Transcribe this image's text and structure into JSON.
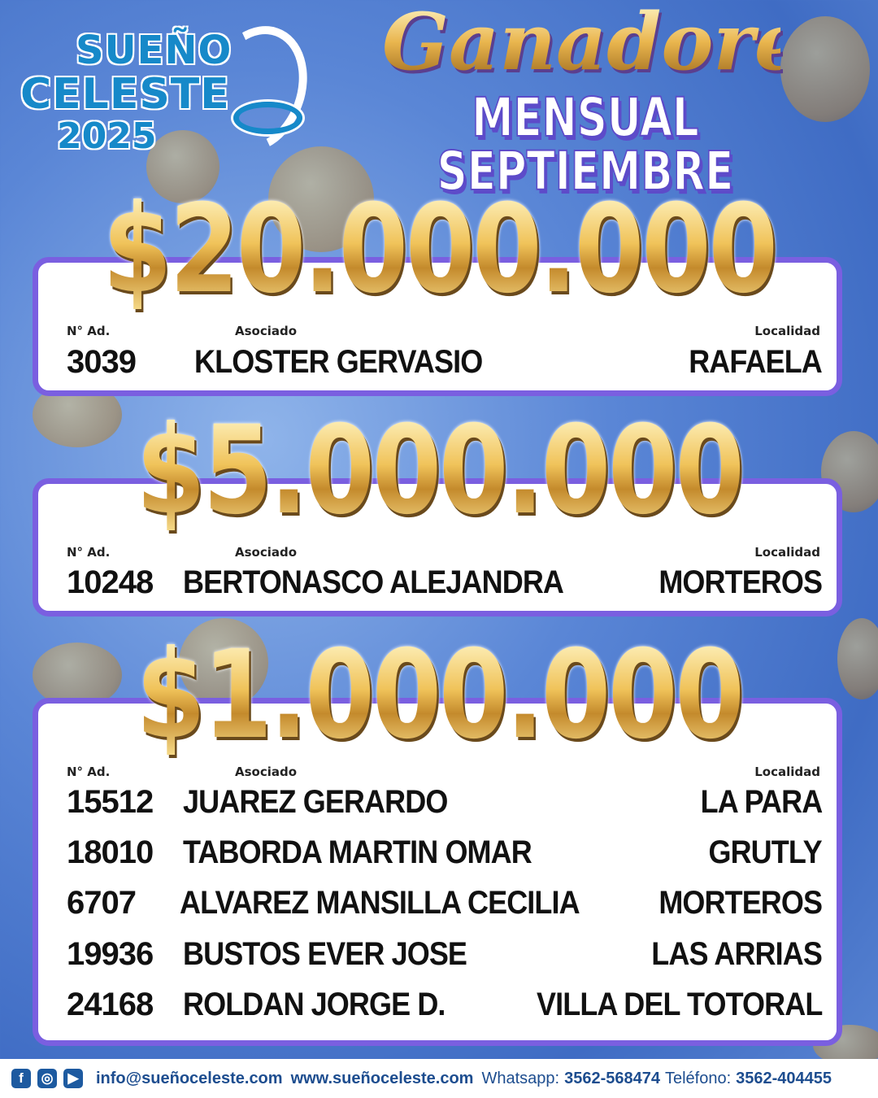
{
  "logo": {
    "line1": "SUEÑO",
    "line2": "CELESTE",
    "year": "2025"
  },
  "header": {
    "title": "Ganadores",
    "subtitle": "MENSUAL SEPTIEMBRE"
  },
  "labels": {
    "number": "N° Ad.",
    "associate": "Asociado",
    "locality": "Localidad"
  },
  "prizes": [
    {
      "amount": "$20.000.000",
      "winners": [
        {
          "number": "3039",
          "name": "KLOSTER  GERVASIO",
          "locality": "RAFAELA"
        }
      ]
    },
    {
      "amount": "$5.000.000",
      "winners": [
        {
          "number": "10248",
          "name": "BERTONASCO ALEJANDRA",
          "locality": "MORTEROS"
        }
      ]
    },
    {
      "amount": "$1.000.000",
      "winners": [
        {
          "number": "15512",
          "name": "JUAREZ GERARDO",
          "locality": "LA PARA"
        },
        {
          "number": "18010",
          "name": "TABORDA MARTIN OMAR",
          "locality": "GRUTLY"
        },
        {
          "number": "6707",
          "name": "ALVAREZ MANSILLA CECILIA",
          "locality": "MORTEROS"
        },
        {
          "number": "19936",
          "name": "BUSTOS EVER JOSE",
          "locality": "LAS ARRIAS"
        },
        {
          "number": "24168",
          "name": "ROLDAN JORGE D.",
          "locality": "VILLA DEL TOTORAL"
        }
      ]
    }
  ],
  "footer": {
    "icons": [
      "facebook-icon",
      "instagram-icon",
      "youtube-icon"
    ],
    "email": "info@sueñoceleste.com",
    "web": "www.sueñoceleste.com",
    "whatsapp_label": "Whatsapp:",
    "whatsapp": "3562-568474",
    "phone_label": "Teléfono:",
    "phone": "3562-404455"
  },
  "colors": {
    "card_border": "#7a5fe0",
    "background": "#5a86d6",
    "gold": "#e9b54e",
    "brand": "#1689c9"
  }
}
